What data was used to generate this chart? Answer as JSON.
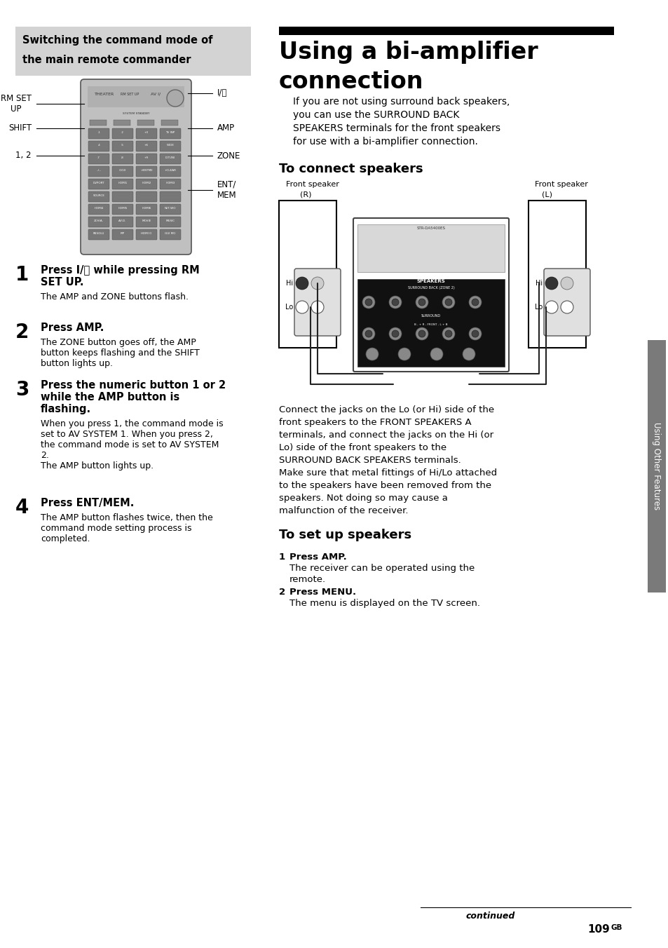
{
  "page_bg": "#ffffff",
  "left_box_bg": "#d3d3d3",
  "left_box_title_line1": "Switching the command mode of",
  "left_box_title_line2": "the main remote commander",
  "right_title_bar_color": "#000000",
  "right_title_line1": "Using a bi-amplifier",
  "right_title_line2": "connection",
  "right_intro_lines": [
    "If you are not using surround back speakers,",
    "you can use the SURROUND BACK",
    "SPEAKERS terminals for the front speakers",
    "for use with a bi-amplifier connection."
  ],
  "section1_title": "To connect speakers",
  "connect_text_lines": [
    "Connect the jacks on the Lo (or Hi) side of the",
    "front speakers to the FRONT SPEAKERS A",
    "terminals, and connect the jacks on the Hi (or",
    "Lo) side of the front speakers to the",
    "SURROUND BACK SPEAKERS terminals.",
    "Make sure that metal fittings of Hi/Lo attached",
    "to the speakers have been removed from the",
    "speakers. Not doing so may cause a",
    "malfunction of the receiver."
  ],
  "section2_title": "To set up speakers",
  "setup_steps": [
    {
      "num": "1",
      "bold": "Press AMP.",
      "normal_lines": [
        "The receiver can be operated using the",
        "remote."
      ]
    },
    {
      "num": "2",
      "bold": "Press MENU.",
      "normal_lines": [
        "The menu is displayed on the TV screen."
      ]
    }
  ],
  "left_steps": [
    {
      "num": "1",
      "bold_lines": [
        "Press I/⏻ while pressing RM",
        "SET UP."
      ],
      "normal_lines": [
        "The AMP and ZONE buttons flash."
      ]
    },
    {
      "num": "2",
      "bold_lines": [
        "Press AMP."
      ],
      "normal_lines": [
        "The ZONE button goes off, the AMP",
        "button keeps flashing and the SHIFT",
        "button lights up."
      ]
    },
    {
      "num": "3",
      "bold_lines": [
        "Press the numeric button 1 or 2",
        "while the AMP button is",
        "flashing."
      ],
      "normal_lines": [
        "When you press 1, the command mode is",
        "set to AV SYSTEM 1. When you press 2,",
        "the command mode is set to AV SYSTEM",
        "2.",
        "The AMP button lights up."
      ]
    },
    {
      "num": "4",
      "bold_lines": [
        "Press ENT/MEM."
      ],
      "normal_lines": [
        "The AMP button flashes twice, then the",
        "command mode setting process is",
        "completed."
      ]
    }
  ],
  "continued_text": "continued",
  "page_num": "109",
  "page_num_suffix": "GB",
  "sidebar_text": "Using Other Features",
  "sidebar_bg": "#7a7a7a"
}
